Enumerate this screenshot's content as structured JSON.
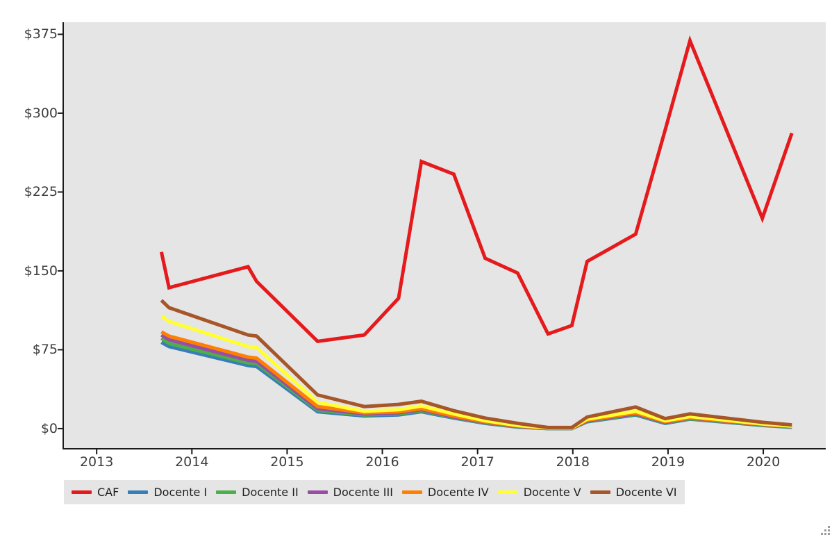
{
  "chart_data": {
    "type": "line",
    "title": "",
    "xlabel": "",
    "ylabel": "",
    "grid": false,
    "legend_position": "bottom-left",
    "plot_bg": "#e5e5e5",
    "figure_bg": "#ffffff",
    "spine_color": "#1a1a1a",
    "tick_label_color": "#3d3d3d",
    "x_axis": {
      "range": [
        2012.656,
        2020.656
      ],
      "tick_values": [
        2013,
        2014,
        2015,
        2016,
        2017,
        2018,
        2019,
        2020
      ],
      "tick_labels": [
        "2013",
        "2014",
        "2015",
        "2016",
        "2017",
        "2018",
        "2019",
        "2020"
      ]
    },
    "y_axis": {
      "range": [
        -19.2,
        386.5
      ],
      "tick_values": [
        0,
        75,
        150,
        225,
        300,
        375
      ],
      "tick_labels": [
        "$0",
        "$75",
        "$150",
        "$225",
        "$300",
        "$375"
      ]
    },
    "x": [
      2013.68,
      2013.76,
      2014.59,
      2014.68,
      2015.32,
      2015.81,
      2016.17,
      2016.41,
      2016.75,
      2017.08,
      2017.42,
      2017.74,
      2017.99,
      2018.15,
      2018.66,
      2018.97,
      2019.23,
      2019.99,
      2020.3
    ],
    "series": [
      {
        "name": "CAF",
        "color": "#e41a1c",
        "values": [
          168,
          134,
          154,
          140,
          83,
          89,
          124,
          254,
          242,
          162,
          148,
          90,
          98,
          159,
          185,
          284,
          369,
          200,
          281
        ]
      },
      {
        "name": "Docente I",
        "color": "#377eb8",
        "values": [
          82,
          78,
          60,
          59,
          16,
          12,
          13,
          16,
          10,
          5,
          1.4,
          0,
          0,
          6.5,
          13,
          5,
          9,
          3,
          1.2
        ]
      },
      {
        "name": "Docente II",
        "color": "#4daf4a",
        "values": [
          86,
          81,
          62.5,
          62,
          17.5,
          13,
          14,
          17,
          10.5,
          5.5,
          1.7,
          0,
          0,
          7,
          13.6,
          5.5,
          9.5,
          3.4,
          1.5
        ]
      },
      {
        "name": "Docente III",
        "color": "#984ea3",
        "values": [
          89,
          84.5,
          65,
          64,
          19,
          14,
          15,
          18,
          11,
          6,
          2,
          0.2,
          0.2,
          7.5,
          14.2,
          6,
          10,
          3.7,
          1.8
        ]
      },
      {
        "name": "Docente IV",
        "color": "#ff7f00",
        "values": [
          92,
          88,
          68,
          67,
          21,
          15,
          16,
          19,
          12,
          6.5,
          2.5,
          0.4,
          0.4,
          8,
          15,
          6.5,
          10.5,
          4,
          2
        ]
      },
      {
        "name": "Docente V",
        "color": "#ffff33",
        "values": [
          107,
          102,
          78,
          77,
          25,
          16.5,
          18,
          21.5,
          14,
          7.5,
          3,
          0.7,
          0.7,
          9,
          16.5,
          7.5,
          11.5,
          4.5,
          2.5
        ]
      },
      {
        "name": "Docente VI",
        "color": "#a65628",
        "values": [
          122,
          115,
          89,
          88,
          32,
          21,
          23,
          26,
          17,
          10,
          5,
          1,
          1,
          11,
          20.5,
          9.5,
          14,
          6,
          3.5
        ]
      }
    ],
    "line_width": 5
  },
  "legend": {
    "background": "#e5e5e5"
  },
  "grip": {
    "dot_color": "#9b9b9b"
  }
}
